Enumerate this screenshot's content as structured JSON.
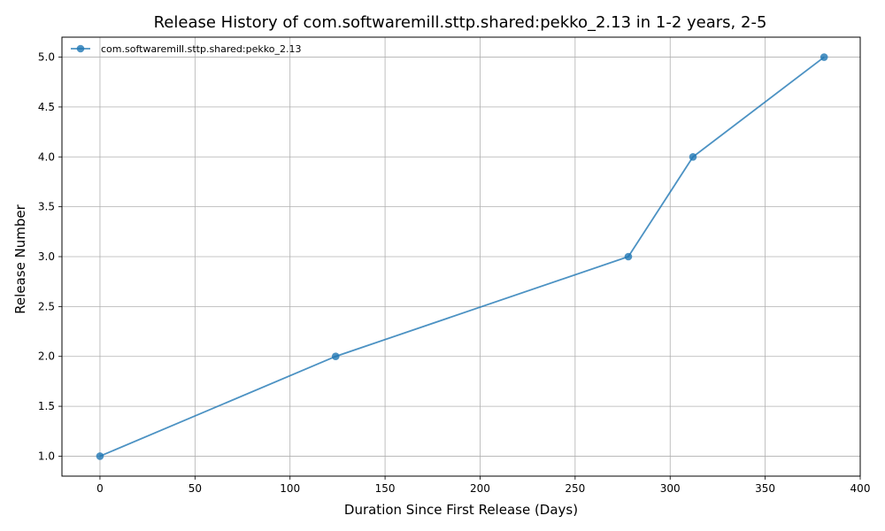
{
  "chart_data": {
    "type": "line",
    "title": "Release History of com.softwaremill.sttp.shared:pekko_2.13 in 1-2 years, 2-5",
    "xlabel": "Duration Since First Release (Days)",
    "ylabel": "Release Number",
    "xlim": [
      -20,
      400
    ],
    "ylim": [
      0.8,
      5.2
    ],
    "xticks": [
      0,
      50,
      100,
      150,
      200,
      250,
      300,
      350,
      400
    ],
    "yticks": [
      1.0,
      1.5,
      2.0,
      2.5,
      3.0,
      3.5,
      4.0,
      4.5,
      5.0
    ],
    "xtick_labels": [
      "0",
      "50",
      "100",
      "150",
      "200",
      "250",
      "300",
      "350",
      "400"
    ],
    "ytick_labels": [
      "1.0",
      "1.5",
      "2.0",
      "2.5",
      "3.0",
      "3.5",
      "4.0",
      "4.5",
      "5.0"
    ],
    "grid": true,
    "legend_position": "top-left",
    "series": [
      {
        "name": "com.softwaremill.sttp.shared:pekko_2.13",
        "color": "#1f77b4",
        "marker": "circle",
        "x": [
          0,
          124,
          278,
          312,
          381
        ],
        "y": [
          1,
          2,
          3,
          4,
          5
        ]
      }
    ]
  }
}
